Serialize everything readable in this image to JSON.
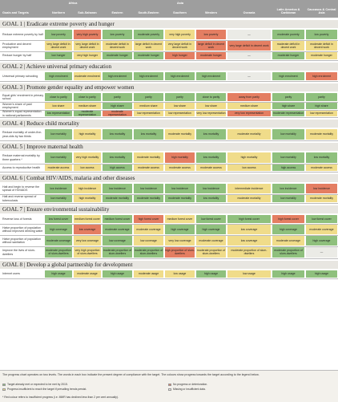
{
  "header": {
    "col_label": "Goals and Targets",
    "groups": [
      "Africa",
      "Asia"
    ],
    "regions": [
      "Northern",
      "Sub-Saharan",
      "Eastern",
      "South-Eastern",
      "Southern",
      "Western",
      "Oceania",
      "Latin America & Caribbean",
      "Caucasus & Central Asia"
    ]
  },
  "goals": [
    {
      "title": "GOAL 1 | Eradicate extreme poverty and hunger",
      "rows": [
        {
          "target": "Reduce extreme poverty by half",
          "cells": [
            [
              "low poverty",
              "g"
            ],
            [
              "very high poverty",
              "r"
            ],
            [
              "low poverty",
              "g"
            ],
            [
              "moderate poverty",
              "g"
            ],
            [
              "very high poverty",
              "y"
            ],
            [
              "low poverty",
              "r"
            ],
            [
              "—",
              "w"
            ],
            [
              "moderate poverty",
              "g"
            ],
            [
              "low poverty",
              "g"
            ]
          ]
        },
        {
          "target": "Productive and decent employment",
          "cells": [
            [
              "very large deficit in decent work",
              "y"
            ],
            [
              "very large deficit in decent work",
              "y"
            ],
            [
              "moderate deficit in decent work",
              "y"
            ],
            [
              "large deficit in decent work",
              "y"
            ],
            [
              "very large deficit in decent work",
              "y"
            ],
            [
              "large deficit in decent work",
              "r"
            ],
            [
              "very large deficit in decent work",
              "r"
            ],
            [
              "moderate deficit in decent work",
              "y"
            ],
            [
              "moderate deficit in decent work",
              "y"
            ]
          ]
        },
        {
          "target": "Reduce hunger by half",
          "cells": [
            [
              "low hunger",
              "g"
            ],
            [
              "very high hunger",
              "y"
            ],
            [
              "moderate hunger",
              "g"
            ],
            [
              "moderate hunger",
              "g"
            ],
            [
              "high hunger",
              "r"
            ],
            [
              "moderate hunger",
              "r"
            ],
            [
              "—",
              "w"
            ],
            [
              "moderate hunger",
              "g"
            ],
            [
              "moderate hunger",
              "y"
            ]
          ]
        }
      ]
    },
    {
      "title": "GOAL 2 | Achieve universal primary education",
      "rows": [
        {
          "target": "Universal primary schooling",
          "cells": [
            [
              "high enrolment",
              "g"
            ],
            [
              "moderate enrolment",
              "y"
            ],
            [
              "high enrolment",
              "g"
            ],
            [
              "high enrolment",
              "g"
            ],
            [
              "high enrolment",
              "g"
            ],
            [
              "high enrolment",
              "g"
            ],
            [
              "—",
              "w"
            ],
            [
              "high enrolment",
              "g"
            ],
            [
              "high enrolment",
              "r"
            ]
          ]
        }
      ]
    },
    {
      "title": "GOAL 3 | Promote gender equality and empower women",
      "rows": [
        {
          "target": "Equal girls' enrolment in primary school",
          "cells": [
            [
              "close to parity",
              "g"
            ],
            [
              "close to parity",
              "g"
            ],
            [
              "parity",
              "g"
            ],
            [
              "parity",
              "g"
            ],
            [
              "parity",
              "g"
            ],
            [
              "close to parity",
              "g"
            ],
            [
              "away from parity",
              "r"
            ],
            [
              "parity",
              "g"
            ],
            [
              "parity",
              "g"
            ]
          ]
        },
        {
          "target": "Women's share of paid employment",
          "cells": [
            [
              "low share",
              "y"
            ],
            [
              "medium share",
              "y"
            ],
            [
              "high share",
              "g"
            ],
            [
              "medium share",
              "y"
            ],
            [
              "low share",
              "y"
            ],
            [
              "low share",
              "y"
            ],
            [
              "medium share",
              "y"
            ],
            [
              "high share",
              "g"
            ],
            [
              "high share",
              "g"
            ]
          ]
        },
        {
          "target": "Women's equal representation in national parliaments",
          "cells": [
            [
              "low representation",
              "g"
            ],
            [
              "moderate representation",
              "g"
            ],
            [
              "moderate representation",
              "r"
            ],
            [
              "low representation",
              "y"
            ],
            [
              "low representation",
              "y"
            ],
            [
              "very low representation",
              "y"
            ],
            [
              "very low representation",
              "r"
            ],
            [
              "moderate representation",
              "g"
            ],
            [
              "low representation",
              "y"
            ]
          ]
        }
      ]
    },
    {
      "title": "GOAL 4 | Reduce child mortality",
      "rows": [
        {
          "target": "Reduce mortality of under-five-year-olds by two thirds",
          "cells": [
            [
              "low mortality",
              "g"
            ],
            [
              "high mortality",
              "y"
            ],
            [
              "low mortality",
              "g"
            ],
            [
              "low mortality",
              "g"
            ],
            [
              "moderate mortality",
              "y"
            ],
            [
              "low mortality",
              "g"
            ],
            [
              "moderate mortality",
              "y"
            ],
            [
              "low mortality",
              "g"
            ],
            [
              "moderate mortality",
              "y"
            ]
          ]
        }
      ]
    },
    {
      "title": "GOAL 5 | Improve maternal health",
      "rows": [
        {
          "target": "Reduce maternal mortality by three quarters *",
          "cells": [
            [
              "low mortality",
              "g"
            ],
            [
              "very high mortality",
              "y"
            ],
            [
              "low mortality",
              "g"
            ],
            [
              "moderate mortality",
              "y"
            ],
            [
              "high mortality",
              "r"
            ],
            [
              "low mortality",
              "g"
            ],
            [
              "high mortality",
              "y"
            ],
            [
              "low mortality",
              "g"
            ],
            [
              "low mortality",
              "g"
            ]
          ]
        },
        {
          "target": "Access to reproductive health",
          "cells": [
            [
              "moderate access",
              "y"
            ],
            [
              "low access",
              "y"
            ],
            [
              "high access",
              "g"
            ],
            [
              "moderate access",
              "y"
            ],
            [
              "moderate access",
              "y"
            ],
            [
              "moderate access",
              "y"
            ],
            [
              "low access",
              "y"
            ],
            [
              "high access",
              "g"
            ],
            [
              "moderate access",
              "y"
            ]
          ]
        }
      ]
    },
    {
      "title": "GOAL 6 | Combat HIV/AIDS, malaria and other diseases",
      "rows": [
        {
          "target": "Halt and begin to reverse the spread of HIV/AIDS",
          "cells": [
            [
              "low incidence",
              "g"
            ],
            [
              "high incidence",
              "y"
            ],
            [
              "low incidence",
              "g"
            ],
            [
              "low incidence",
              "g"
            ],
            [
              "low incidence",
              "g"
            ],
            [
              "low incidence",
              "g"
            ],
            [
              "intermediate incidence",
              "y"
            ],
            [
              "low incidence",
              "g"
            ],
            [
              "low incidence",
              "r"
            ]
          ]
        },
        {
          "target": "Halt and reverse spread of tuberculosis",
          "cells": [
            [
              "low mortality",
              "g"
            ],
            [
              "high mortality",
              "y"
            ],
            [
              "moderate mortality",
              "g"
            ],
            [
              "moderate mortality",
              "g"
            ],
            [
              "moderate mortality",
              "g"
            ],
            [
              "low mortality",
              "g"
            ],
            [
              "moderate mortality",
              "y"
            ],
            [
              "low mortality",
              "g"
            ],
            [
              "moderate mortality",
              "y"
            ]
          ]
        }
      ]
    },
    {
      "title": "GOAL 7 | Ensure environmental sustainability",
      "rows": [
        {
          "target": "Reverse loss of forests",
          "cells": [
            [
              "low forest cover",
              "g"
            ],
            [
              "medium forest cover",
              "y"
            ],
            [
              "medium forest cover",
              "g"
            ],
            [
              "high forest cover",
              "r"
            ],
            [
              "medium forest cover",
              "y"
            ],
            [
              "low forest cover",
              "g"
            ],
            [
              "high forest cover",
              "g"
            ],
            [
              "high forest cover",
              "r"
            ],
            [
              "low forest cover",
              "g"
            ]
          ]
        },
        {
          "target": "Halve proportion of population without improved drinking water",
          "cells": [
            [
              "high coverage",
              "g"
            ],
            [
              "low coverage",
              "r"
            ],
            [
              "moderate coverage",
              "g"
            ],
            [
              "moderate coverage",
              "y"
            ],
            [
              "high coverage",
              "g"
            ],
            [
              "high coverage",
              "g"
            ],
            [
              "low coverage",
              "y"
            ],
            [
              "high coverage",
              "g"
            ],
            [
              "moderate coverage",
              "y"
            ]
          ]
        },
        {
          "target": "Halve proportion of population without sanitation",
          "cells": [
            [
              "moderate coverage",
              "g"
            ],
            [
              "very low coverage",
              "y"
            ],
            [
              "low coverage",
              "g"
            ],
            [
              "low coverage",
              "y"
            ],
            [
              "very low coverage",
              "y"
            ],
            [
              "moderate coverage",
              "y"
            ],
            [
              "low coverage",
              "y"
            ],
            [
              "moderate coverage",
              "y"
            ],
            [
              "high coverage",
              "g"
            ]
          ]
        },
        {
          "target": "Improve the lives of slum-dwellers",
          "cells": [
            [
              "moderate proportion of slum-dwellers",
              "g"
            ],
            [
              "very high proportion of slum-dwellers",
              "y"
            ],
            [
              "moderate proportion of slum-dwellers",
              "g"
            ],
            [
              "moderate proportion of slum-dwellers",
              "g"
            ],
            [
              "high proportion of slum-dwellers",
              "r"
            ],
            [
              "moderate proportion of slum-dwellers",
              "y"
            ],
            [
              "moderate proportion of slum-dwellers",
              "y"
            ],
            [
              "moderate proportion of slum-dwellers",
              "g"
            ],
            [
              "—",
              "w"
            ]
          ]
        }
      ]
    },
    {
      "title": "GOAL 8 | Develop a global partnership for development",
      "rows": [
        {
          "target": "Internet users",
          "cells": [
            [
              "high usage",
              "g"
            ],
            [
              "moderate usage",
              "y"
            ],
            [
              "high usage",
              "g"
            ],
            [
              "moderate usage",
              "y"
            ],
            [
              "low usage",
              "y"
            ],
            [
              "high usage",
              "g"
            ],
            [
              "low usage",
              "y"
            ],
            [
              "high usage",
              "g"
            ],
            [
              "high usage",
              "g"
            ]
          ]
        }
      ]
    }
  ],
  "footer": {
    "intro": "The progress chart operates on two levels. The words in each box indicate the present degree of compliance with the target. The colours show progress towards the target according to the legend below.",
    "legend": [
      {
        "label": "Target already met or expected to be met by 2015.",
        "color": "#8fc07d"
      },
      {
        "label": "No progress or deterioration.",
        "color": "#e47e62"
      },
      {
        "label": "Progress insufficient to reach the target if prevailing trends persist.",
        "color": "#f0dc8a"
      },
      {
        "label": "Missing or insufficient data.",
        "color": "#ebebe6"
      }
    ],
    "note": "* Red colour refers to insufficient progress (i.e. MMR has declined less than 2 per cent annually)."
  }
}
